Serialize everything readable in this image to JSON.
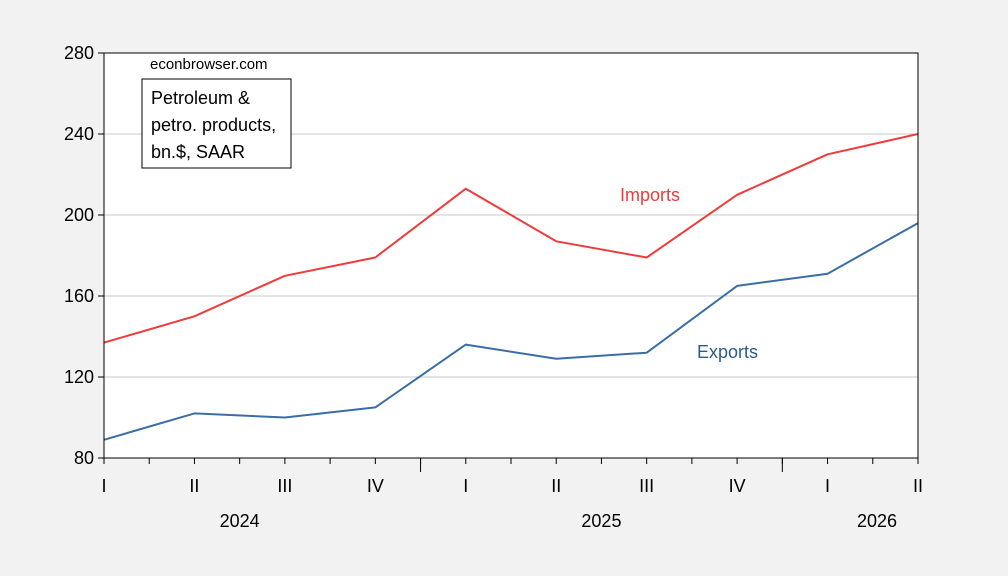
{
  "chart_data": {
    "type": "line",
    "source_note": "econbrowser.com",
    "legend_lines": [
      "Petroleum &",
      "petro. products,",
      "bn.$, SAAR"
    ],
    "x": [
      "I",
      "II",
      "III",
      "IV",
      "I",
      "II",
      "III",
      "IV",
      "I",
      "II"
    ],
    "years": [
      {
        "label": "2024",
        "start_index": 0,
        "end_index": 3
      },
      {
        "label": "2025",
        "start_index": 4,
        "end_index": 7
      },
      {
        "label": "2026",
        "start_index": 8,
        "end_index": 9
      }
    ],
    "series": [
      {
        "name": "Imports",
        "color": "#ee3b3b",
        "values": [
          137,
          150,
          170,
          179,
          213,
          187,
          179,
          210,
          230,
          240
        ]
      },
      {
        "name": "Exports",
        "color": "#3a6ea5",
        "values": [
          89,
          102,
          100,
          105,
          136,
          129,
          132,
          165,
          171,
          196
        ]
      }
    ],
    "ylim": [
      80,
      280
    ],
    "yticks": [
      80,
      120,
      160,
      200,
      240,
      280
    ],
    "grid": true
  }
}
